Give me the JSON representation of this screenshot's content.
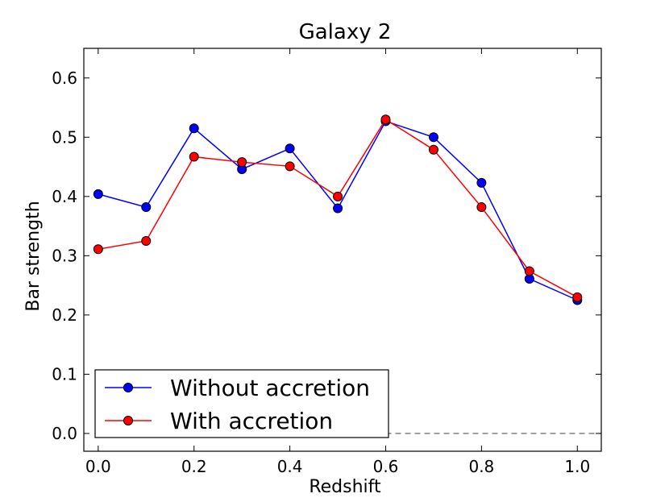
{
  "chart_data": {
    "type": "line",
    "title": "Galaxy 2",
    "xlabel": "Redshift",
    "ylabel": "Bar strength",
    "xlim": [
      -0.03,
      1.05
    ],
    "ylim": [
      -0.03,
      0.65
    ],
    "xticks": [
      0.0,
      0.2,
      0.4,
      0.6,
      0.8,
      1.0
    ],
    "xtick_labels": [
      "0.0",
      "0.2",
      "0.4",
      "0.6",
      "0.8",
      "1.0"
    ],
    "yticks": [
      0.0,
      0.1,
      0.2,
      0.3,
      0.4,
      0.5,
      0.6
    ],
    "ytick_labels": [
      "0.0",
      "0.1",
      "0.2",
      "0.3",
      "0.4",
      "0.5",
      "0.6"
    ],
    "grid": false,
    "legend_position": "lower-left",
    "reference_line": {
      "y": 0.0,
      "x_from": 0.6,
      "style": "dashed",
      "color": "#555555"
    },
    "series": [
      {
        "name": "Without accretion",
        "color": "#0000ff",
        "x": [
          0.0,
          0.1,
          0.2,
          0.3,
          0.4,
          0.5,
          0.6,
          0.7,
          0.8,
          0.9,
          1.0
        ],
        "values": [
          0.404,
          0.382,
          0.515,
          0.446,
          0.481,
          0.38,
          0.527,
          0.5,
          0.423,
          0.261,
          0.225
        ]
      },
      {
        "name": "With accretion",
        "color": "#ff0000",
        "x": [
          0.0,
          0.1,
          0.2,
          0.3,
          0.4,
          0.5,
          0.6,
          0.7,
          0.8,
          0.9,
          1.0
        ],
        "values": [
          0.311,
          0.325,
          0.467,
          0.458,
          0.451,
          0.4,
          0.53,
          0.479,
          0.382,
          0.274,
          0.23
        ]
      }
    ]
  }
}
